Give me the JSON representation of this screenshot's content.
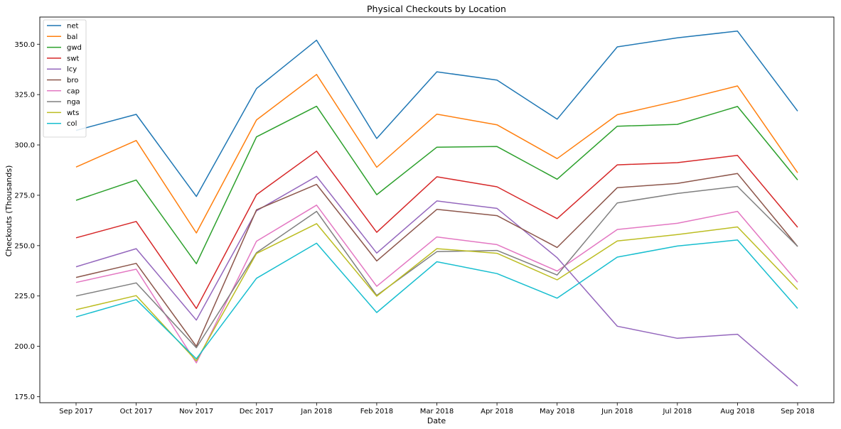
{
  "chart_data": {
    "type": "line",
    "title": "Physical Checkouts by Location",
    "xlabel": "Date",
    "ylabel": "Checkouts (Thousands)",
    "categories": [
      "Sep 2017",
      "Oct 2017",
      "Nov 2017",
      "Dec 2017",
      "Jan 2018",
      "Feb 2018",
      "Mar 2018",
      "Apr 2018",
      "May 2018",
      "Jun 2018",
      "Jul 2018",
      "Aug 2018",
      "Sep 2018"
    ],
    "ylim": [
      172,
      363.5
    ],
    "yticks": [
      175.0,
      200.0,
      225.0,
      250.0,
      275.0,
      300.0,
      325.0,
      350.0
    ],
    "grid": false,
    "legend_position": "top-left",
    "series": [
      {
        "name": "net",
        "color": "#1f77b4",
        "values": [
          307.2,
          315.2,
          274.4,
          328.0,
          352.0,
          303.2,
          336.3,
          332.2,
          312.8,
          348.7,
          353.2,
          356.5,
          316.8
        ]
      },
      {
        "name": "bal",
        "color": "#ff7f0e",
        "values": [
          289.0,
          302.2,
          256.3,
          312.4,
          335.0,
          288.9,
          315.3,
          310.0,
          293.2,
          315.0,
          321.8,
          329.3,
          286.2
        ]
      },
      {
        "name": "gwd",
        "color": "#2ca02c",
        "values": [
          272.5,
          282.6,
          241.0,
          304.0,
          319.2,
          275.3,
          298.9,
          299.2,
          283.0,
          309.3,
          310.2,
          319.1,
          282.6
        ]
      },
      {
        "name": "swt",
        "color": "#d62728",
        "values": [
          253.9,
          262.0,
          218.8,
          275.3,
          296.9,
          256.6,
          284.2,
          279.2,
          263.4,
          290.1,
          291.2,
          294.8,
          259.1
        ]
      },
      {
        "name": "lcy",
        "color": "#9467bd",
        "values": [
          239.5,
          248.5,
          213.0,
          267.3,
          284.4,
          246.3,
          272.2,
          268.5,
          244.0,
          210.0,
          204.0,
          206.0,
          180.3
        ]
      },
      {
        "name": "bro",
        "color": "#8c564b",
        "values": [
          234.2,
          241.2,
          200.0,
          267.8,
          280.4,
          242.4,
          268.0,
          264.9,
          249.1,
          278.8,
          280.9,
          285.8,
          249.6
        ]
      },
      {
        "name": "cap",
        "color": "#e377c2",
        "values": [
          231.7,
          238.3,
          191.8,
          252.2,
          270.1,
          229.8,
          254.3,
          250.5,
          237.4,
          258.0,
          261.1,
          267.0,
          231.8
        ]
      },
      {
        "name": "nga",
        "color": "#7f7f7f",
        "values": [
          225.0,
          231.5,
          199.3,
          246.5,
          267.0,
          225.3,
          247.0,
          247.6,
          235.4,
          271.2,
          275.9,
          279.4,
          249.6
        ]
      },
      {
        "name": "wts",
        "color": "#bcbd22",
        "values": [
          218.2,
          225.2,
          192.8,
          246.1,
          260.9,
          224.9,
          248.5,
          246.2,
          233.0,
          252.3,
          255.5,
          259.3,
          228.2
        ]
      },
      {
        "name": "col",
        "color": "#17becf",
        "values": [
          214.6,
          223.2,
          193.8,
          233.8,
          251.2,
          216.8,
          242.0,
          236.1,
          223.9,
          244.3,
          249.8,
          252.8,
          218.8
        ]
      }
    ]
  }
}
